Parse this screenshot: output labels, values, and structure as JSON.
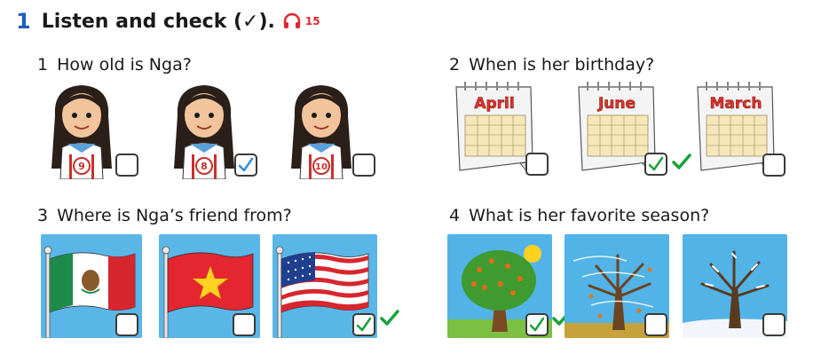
{
  "exercise": {
    "number": "1",
    "instruction": "Listen and check (✓).",
    "track": "15"
  },
  "questions": [
    {
      "number": "1",
      "text": "How old is Nga?",
      "options": [
        "9",
        "8",
        "10"
      ]
    },
    {
      "number": "2",
      "text": "When is her birthday?",
      "options": [
        "April",
        "June",
        "March"
      ]
    },
    {
      "number": "3",
      "text": "Where is Nga’s friend from?",
      "options": [
        "mexico-flag",
        "vietnam-flag",
        "usa-flag"
      ]
    },
    {
      "number": "4",
      "text": "What is her favorite season?",
      "options": [
        "summer-tree",
        "autumn-tree",
        "winter-tree"
      ]
    }
  ],
  "colors": {
    "number_blue": "#1f5fb8",
    "check_blue": "#2f8fe0",
    "check_green": "#19a23b",
    "audio_red": "#e3262f"
  }
}
